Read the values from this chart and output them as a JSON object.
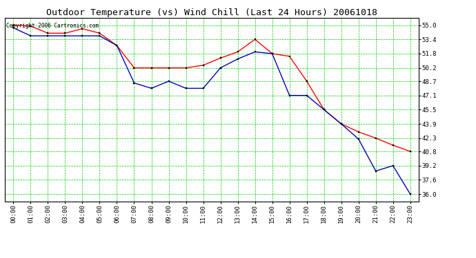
{
  "title": "Outdoor Temperature (vs) Wind Chill (Last 24 Hours) 20061018",
  "copyright": "Copyright 2006 Cartronics.com",
  "hours": [
    "00:00",
    "01:00",
    "02:00",
    "03:00",
    "04:00",
    "05:00",
    "06:00",
    "07:00",
    "08:00",
    "09:00",
    "10:00",
    "11:00",
    "12:00",
    "13:00",
    "14:00",
    "15:00",
    "16:00",
    "17:00",
    "18:00",
    "19:00",
    "20:00",
    "21:00",
    "22:00",
    "23:00"
  ],
  "temp": [
    55.0,
    54.9,
    54.1,
    54.1,
    54.6,
    54.1,
    52.7,
    50.2,
    50.2,
    50.2,
    50.2,
    50.5,
    51.3,
    52.0,
    53.4,
    51.8,
    51.5,
    48.7,
    45.5,
    43.9,
    43.0,
    42.3,
    41.5,
    40.8
  ],
  "windchill": [
    54.7,
    53.8,
    53.8,
    53.8,
    53.8,
    53.8,
    52.7,
    48.5,
    47.9,
    48.7,
    47.9,
    47.9,
    50.2,
    51.2,
    52.0,
    51.8,
    47.1,
    47.1,
    45.5,
    43.9,
    42.2,
    38.6,
    39.2,
    36.0
  ],
  "ylim_min": 35.2,
  "ylim_max": 55.8,
  "yticks": [
    36.0,
    37.6,
    39.2,
    40.8,
    42.3,
    43.9,
    45.5,
    47.1,
    48.7,
    50.2,
    51.8,
    53.4,
    55.0
  ],
  "temp_color": "#ff0000",
  "windchill_color": "#0000bb",
  "grid_color": "#00cc00",
  "bg_color": "#ffffff",
  "line_width": 1.0,
  "marker_size": 2.0,
  "title_fontsize": 9.5,
  "tick_fontsize": 6.5,
  "copyright_fontsize": 5.5
}
